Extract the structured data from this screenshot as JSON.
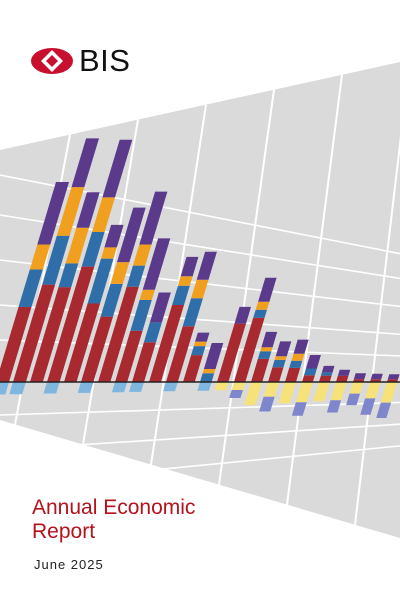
{
  "brand": {
    "logo_text": "BIS",
    "logo_icon": "bis-emblem-icon",
    "accent_color": "#b5121b"
  },
  "cover": {
    "title_line1": "Annual Economic",
    "title_line2": "Report",
    "date": "June 2025",
    "background_shape": "grey perspective panel with white grid"
  },
  "chart_data": {
    "type": "bar",
    "stacked": true,
    "decorative": true,
    "series": [
      {
        "name": "",
        "color": "#a82a30",
        "values": [
          6,
          8,
          8,
          10,
          7,
          6,
          9,
          5,
          4,
          8,
          6,
          3,
          0,
          7,
          8,
          3,
          2,
          2,
          1,
          1,
          1,
          0.5,
          0.5,
          0.5
        ]
      },
      {
        "name": "",
        "color": "#2f6ea8",
        "values": [
          3,
          4,
          2,
          3,
          4,
          3,
          2,
          3,
          2,
          2,
          3,
          1,
          1,
          0,
          1,
          1,
          1,
          1,
          1,
          0.5,
          0,
          0,
          0,
          0
        ]
      },
      {
        "name": "",
        "color": "#f0a01e",
        "values": [
          2,
          4,
          3,
          3,
          1,
          2,
          2,
          1,
          0,
          1,
          2,
          0.5,
          0.5,
          0,
          1,
          0.5,
          0.5,
          1,
          0,
          0,
          0,
          0,
          0,
          0
        ]
      },
      {
        "name": "",
        "color": "#5b3a8c",
        "values": [
          5,
          4,
          3,
          5,
          2,
          5,
          5,
          5,
          3,
          2,
          3,
          1,
          3,
          2,
          3,
          2,
          2,
          2,
          2,
          1,
          1,
          1,
          1,
          1
        ]
      },
      {
        "name": "",
        "color": "#f7e27a",
        "values": [
          0,
          0,
          0,
          0,
          0,
          0,
          0,
          0,
          0,
          0,
          0,
          0,
          0,
          -1,
          -1,
          -3,
          -2,
          -3,
          -3,
          -3,
          -3,
          -2,
          -3,
          -4
        ]
      },
      {
        "name": "",
        "color": "#7f86cc",
        "values": [
          0,
          0,
          0,
          0,
          0,
          0,
          0,
          0,
          0,
          0,
          0,
          0,
          0,
          0,
          -1,
          0,
          -2,
          0,
          -2,
          0,
          -2,
          -2,
          -3,
          -3
        ]
      },
      {
        "name": "",
        "color": "#7fb6e0",
        "values": [
          -1,
          -1,
          0,
          -1,
          0,
          -1,
          0,
          -1,
          -1,
          0,
          -1,
          0,
          -1,
          0,
          0,
          0,
          0,
          0,
          0,
          0,
          0,
          0,
          0,
          0
        ]
      }
    ]
  }
}
